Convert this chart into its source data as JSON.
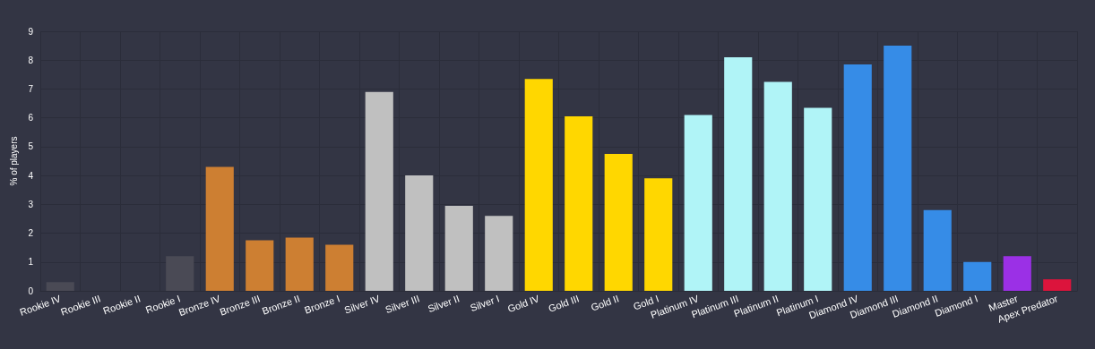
{
  "chart_data": {
    "type": "bar",
    "ylabel": "% of players",
    "categories": [
      "Rookie IV",
      "Rookie III",
      "Rookie II",
      "Rookie I",
      "Bronze IV",
      "Bronze III",
      "Bronze II",
      "Bronze I",
      "Silver IV",
      "Silver III",
      "Silver II",
      "Silver I",
      "Gold IV",
      "Gold III",
      "Gold II",
      "Gold I",
      "Platinum IV",
      "Platinum III",
      "Platinum II",
      "Platinum I",
      "Diamond IV",
      "Diamond III",
      "Diamond II",
      "Diamond I",
      "Master",
      "Apex Predator"
    ],
    "values": [
      0.3,
      0,
      0,
      1.2,
      4.3,
      1.75,
      1.85,
      1.6,
      6.9,
      4.0,
      2.95,
      2.6,
      7.35,
      6.05,
      4.75,
      3.9,
      6.1,
      8.1,
      7.25,
      6.35,
      7.85,
      8.5,
      2.8,
      1.0,
      1.2,
      0.4
    ],
    "colors": [
      "#4a4a55",
      "#4a4a55",
      "#4a4a55",
      "#4a4a55",
      "#cd7f32",
      "#cd7f32",
      "#cd7f32",
      "#cd7f32",
      "#c0c0c0",
      "#c0c0c0",
      "#c0c0c0",
      "#c0c0c0",
      "#ffd700",
      "#ffd700",
      "#ffd700",
      "#ffd700",
      "#b0f4f7",
      "#b0f4f7",
      "#b0f4f7",
      "#b0f4f7",
      "#368ce7",
      "#368ce7",
      "#368ce7",
      "#368ce7",
      "#9b30e6",
      "#dc143c"
    ],
    "ylim": [
      0,
      9
    ],
    "yticks": [
      0,
      1,
      2,
      3,
      4,
      5,
      6,
      7,
      8,
      9
    ],
    "grid": true
  }
}
